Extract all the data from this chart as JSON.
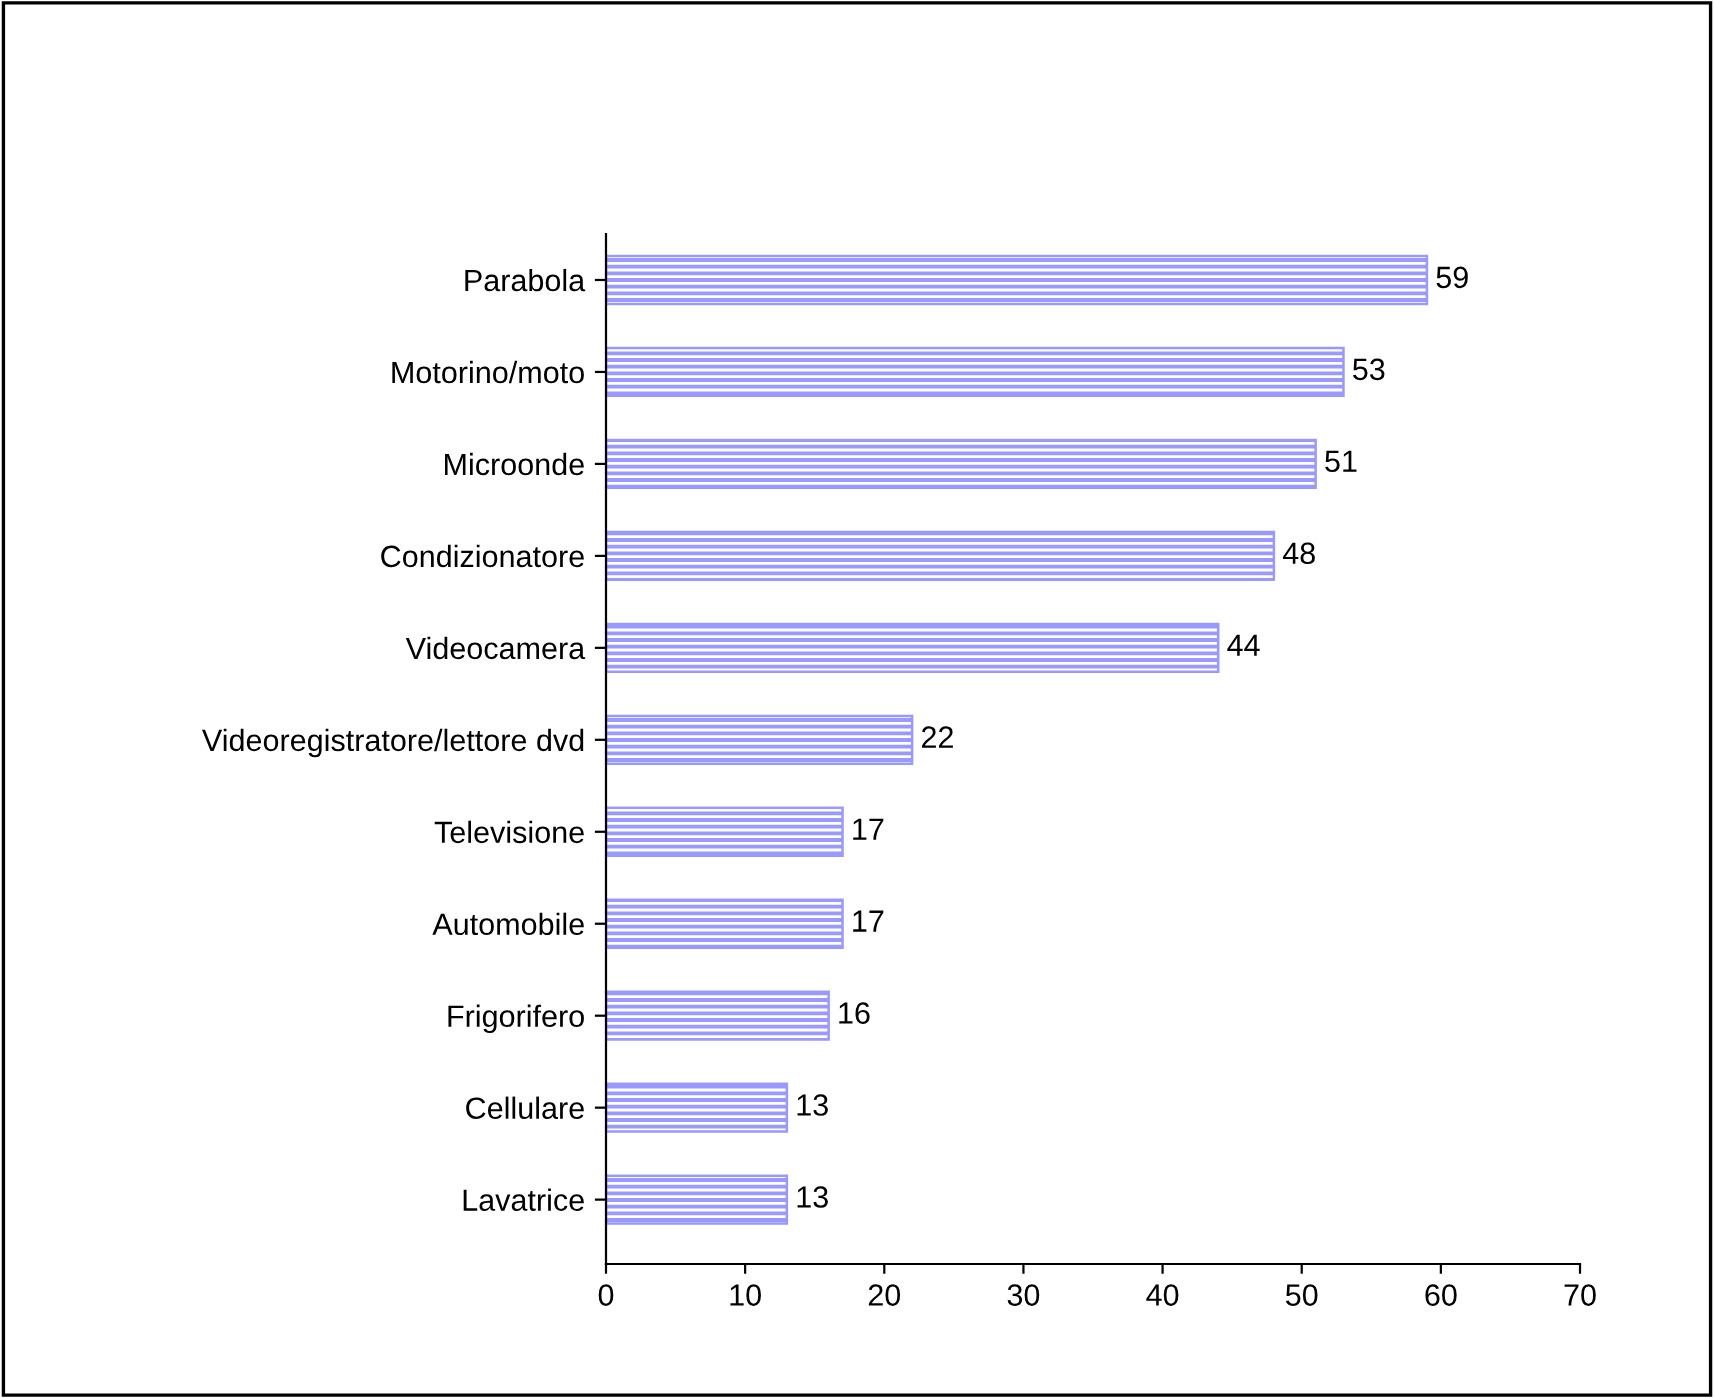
{
  "chart_data": {
    "type": "bar",
    "orientation": "horizontal",
    "categories": [
      "Parabola",
      "Motorino/moto",
      "Microonde",
      "Condizionatore",
      "Videocamera",
      "Videoregistratore/lettore dvd",
      "Televisione",
      "Automobile",
      "Frigorifero",
      "Cellulare",
      "Lavatrice"
    ],
    "values": [
      59,
      53,
      51,
      48,
      44,
      22,
      17,
      17,
      16,
      13,
      13
    ],
    "color": "#9999ff",
    "xlim": [
      0,
      70
    ],
    "xticks": [
      0,
      10,
      20,
      30,
      40,
      50,
      60,
      70
    ],
    "data_labels": true,
    "grid": false,
    "legend": false
  }
}
